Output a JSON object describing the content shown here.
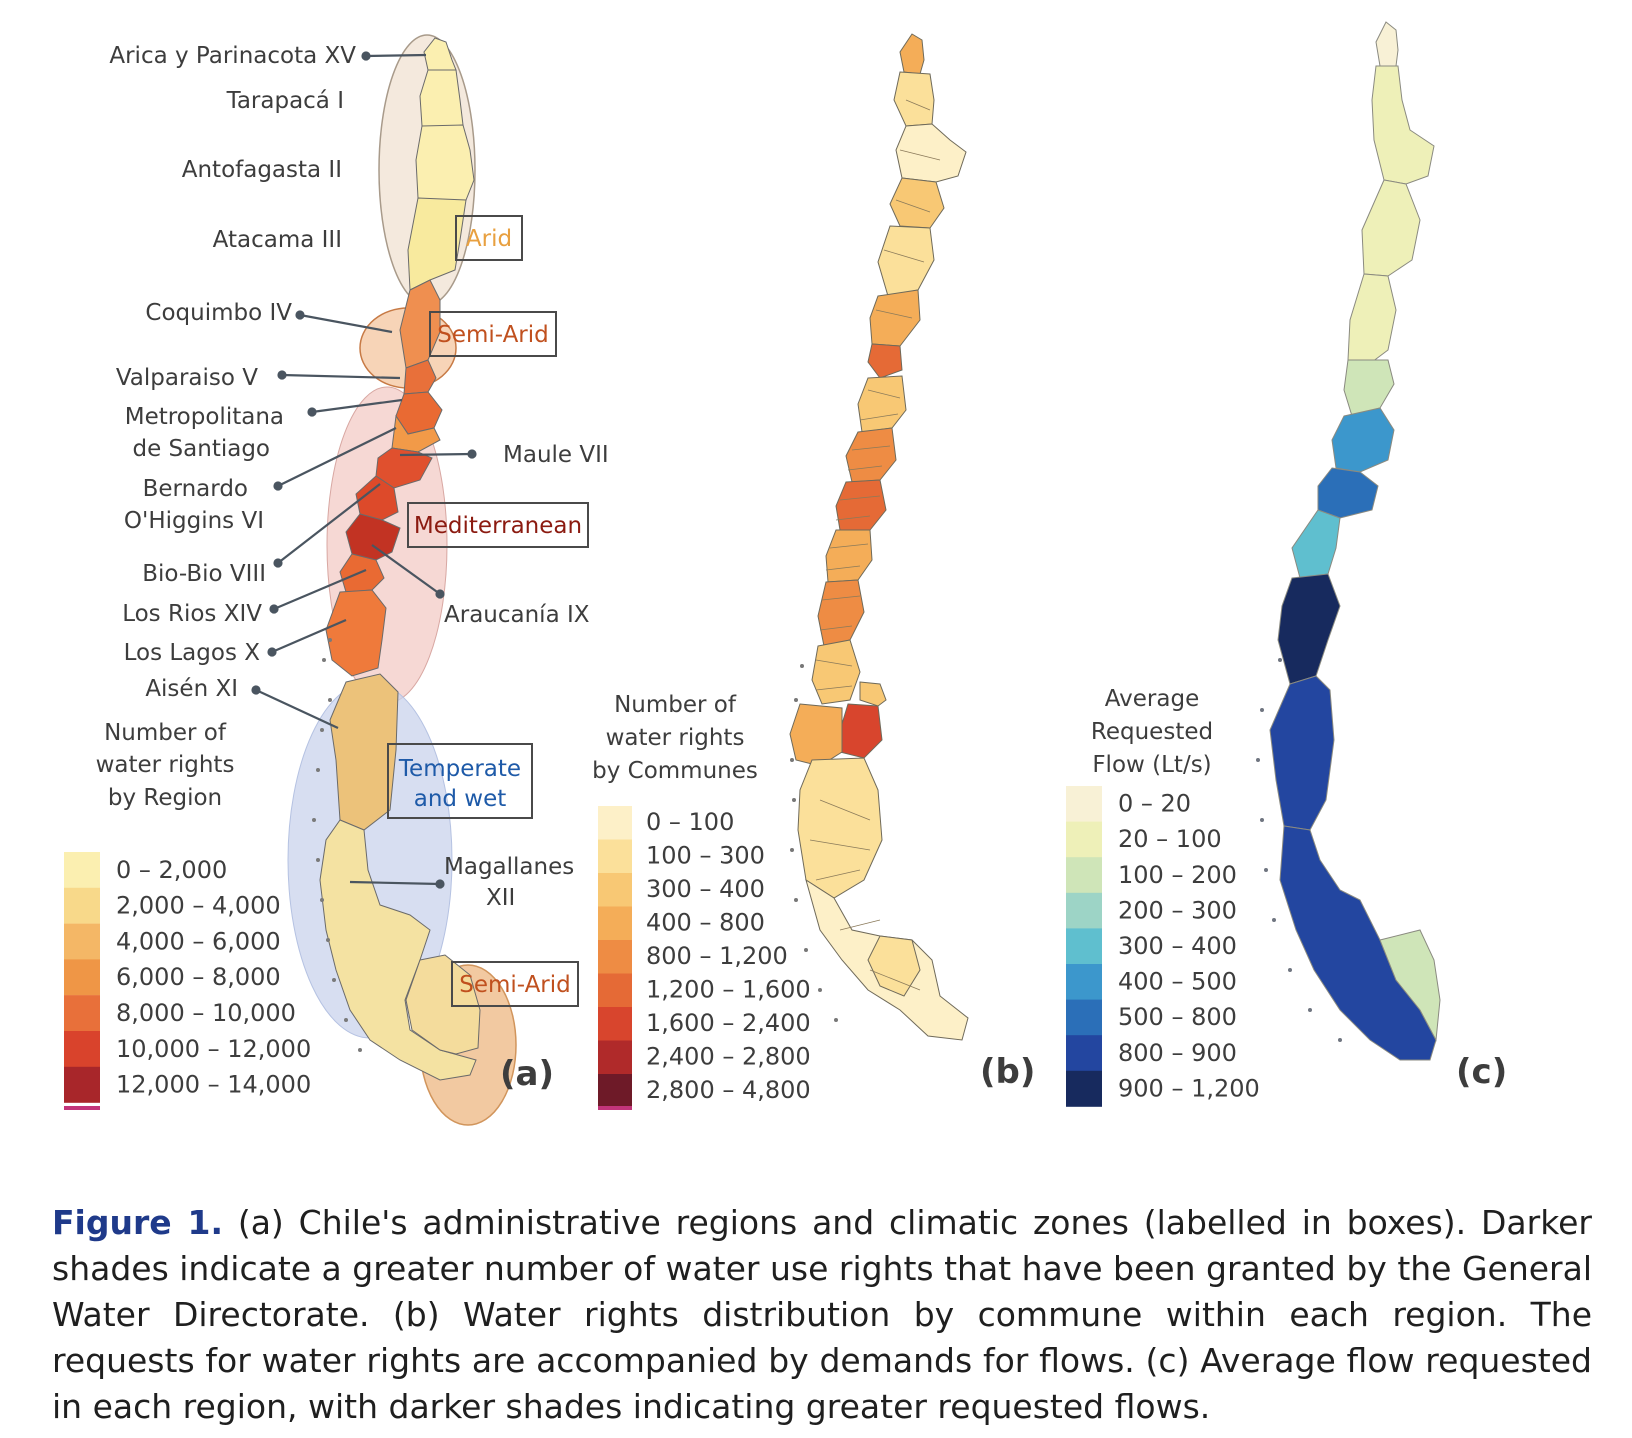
{
  "panel_a": {
    "tag": "(a)",
    "regions": [
      "Arica y Parinacota XV",
      "Tarapacá I",
      "Antofagasta II",
      "Atacama III",
      "Coquimbo IV",
      "Valparaiso V",
      "Metropolitana",
      "de Santiago",
      "Maule VII",
      "Bernardo",
      "O'Higgins VI",
      "Bio-Bio VIII",
      "Los Rios XIV",
      "Araucanía IX",
      "Los Lagos X",
      "Aisén XI",
      "Magallanes",
      "XII"
    ],
    "zones": [
      "Arid",
      "Semi-Arid",
      "Mediterranean",
      "Temperate",
      "and wet",
      "Semi-Arid"
    ],
    "zone_colors": [
      "#e8a040",
      "#c0501e",
      "#8b1a10",
      "#1e5aa8",
      "#1e5aa8",
      "#c0501e"
    ],
    "legend_title": [
      "Number of",
      "water rights",
      "by Region"
    ],
    "legend": [
      {
        "label": "0 – 2,000",
        "color": "#fbefb0"
      },
      {
        "label": "2,000 – 4,000",
        "color": "#f8d98a"
      },
      {
        "label": "4,000 – 6,000",
        "color": "#f4b766"
      },
      {
        "label": "6,000 – 8,000",
        "color": "#ef9646"
      },
      {
        "label": "8,000 – 10,000",
        "color": "#e8703a"
      },
      {
        "label": "10,000 – 12,000",
        "color": "#d9432c"
      },
      {
        "label": "12,000 – 14,000",
        "color": "#a8262a"
      }
    ],
    "region_fill": [
      "#fbefb0",
      "#fbefb0",
      "#fbefb0",
      "#f8ea9e",
      "#ef8f50",
      "#e8703a",
      "#e96a33",
      "#f29a48",
      "#e0502e",
      "#dd4a2a",
      "#c23323",
      "#e96a33",
      "#ef7a3b",
      "#ecc27a",
      "#f4e2a2",
      "#f4dc9c"
    ]
  },
  "panel_b": {
    "tag": "(b)",
    "legend_title": [
      "Number of",
      "water rights",
      "by Communes"
    ],
    "legend": [
      {
        "label": "0 – 100",
        "color": "#fdf0c8"
      },
      {
        "label": "100 – 300",
        "color": "#fbe09a"
      },
      {
        "label": "300 – 400",
        "color": "#f8c874"
      },
      {
        "label": "400 – 800",
        "color": "#f4ad58"
      },
      {
        "label": "800 – 1,200",
        "color": "#ee8c44"
      },
      {
        "label": "1,200 – 1,600",
        "color": "#e56a36"
      },
      {
        "label": "1,600 – 2,400",
        "color": "#d8452d"
      },
      {
        "label": "2,400 – 2,800",
        "color": "#b02a2a"
      },
      {
        "label": "2,800 – 4,800",
        "color": "#6e1a28"
      }
    ]
  },
  "panel_c": {
    "tag": "(c)",
    "legend_title": [
      "Average",
      "Requested",
      "Flow (Lt/s)"
    ],
    "legend": [
      {
        "label": "0 – 20",
        "color": "#f8f1d6"
      },
      {
        "label": "20 – 100",
        "color": "#eef0b8"
      },
      {
        "label": "100 – 200",
        "color": "#cfe5b8"
      },
      {
        "label": "200 – 300",
        "color": "#9dd4c6"
      },
      {
        "label": "300 – 400",
        "color": "#5fbfcf"
      },
      {
        "label": "400 – 500",
        "color": "#3c97cc"
      },
      {
        "label": "500 – 800",
        "color": "#2b6fb8"
      },
      {
        "label": "800 – 900",
        "color": "#2346a0"
      },
      {
        "label": "900 – 1,200",
        "color": "#172a5e"
      }
    ],
    "region_fill": [
      "#f8f1d6",
      "#eef0b8",
      "#eef0b8",
      "#eef0b8",
      "#cfe5b8",
      "#3c97cc",
      "#2b6fb8",
      "#5fbfcf",
      "#172a5e",
      "#2346a0",
      "#2346a0",
      "#cfe5b8"
    ]
  },
  "caption": {
    "label": "Figure 1.",
    "text": " (a) Chile's administrative regions and climatic zones (labelled in boxes). Darker shades indicate a greater number of water use rights that have been granted by the General Water Directorate. (b) Water rights distribution by commune within each region. The requests for water rights are accompanied by demands for flows. (c) Average flow requested in each region, with darker shades indicating greater requested flows."
  }
}
